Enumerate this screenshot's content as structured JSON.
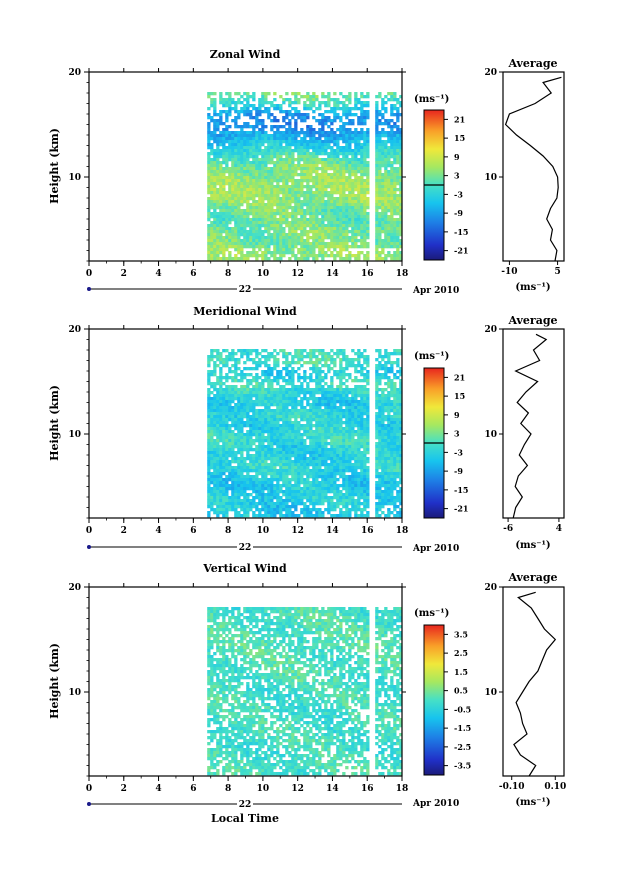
{
  "chart_data": [
    {
      "type": "heatmap",
      "title": "Zonal Wind",
      "ylabel": "Height (km)",
      "ylim": [
        2,
        20
      ],
      "yticks": [
        10,
        20
      ],
      "x_ticks": [
        0,
        2,
        4,
        6,
        8,
        10,
        12,
        14,
        16,
        18
      ],
      "xlim": [
        0,
        18
      ],
      "date_day": "22",
      "date_month_year": "Apr 2010",
      "data_start_hour": 6.8,
      "gap_hour": 16.2,
      "colorbar": {
        "unit": "(ms⁻¹)",
        "ticks": [
          "21",
          "15",
          "9",
          "3",
          "-3",
          "-9",
          "-15",
          "-21"
        ],
        "range": [
          -24,
          24
        ]
      },
      "profile": {
        "title": "Average",
        "xlabel": "(ms⁻¹)",
        "x_ticks": [
          "-10",
          "5"
        ],
        "x_tick_values": [
          -10,
          5
        ],
        "xlim": [
          -12,
          7
        ],
        "y_ticks": [
          "10",
          "20"
        ],
        "ylim": [
          2,
          20
        ],
        "height_km": [
          2,
          3,
          4,
          5,
          6,
          7,
          8,
          9,
          10,
          11,
          12,
          13,
          14,
          15,
          16,
          17,
          18,
          19,
          19.5
        ],
        "wind": [
          4.2,
          4.8,
          2.8,
          3.4,
          1.6,
          2.8,
          4.8,
          5.2,
          5.0,
          3.5,
          0.5,
          -3.5,
          -7.8,
          -11.2,
          -10.0,
          -2.0,
          3.0,
          0.5,
          6.2
        ]
      }
    },
    {
      "type": "heatmap",
      "title": "Meridional Wind",
      "ylabel": "Height (km)",
      "ylim": [
        2,
        20
      ],
      "yticks": [
        10,
        20
      ],
      "x_ticks": [
        0,
        2,
        4,
        6,
        8,
        10,
        12,
        14,
        16,
        18
      ],
      "xlim": [
        0,
        18
      ],
      "date_day": "22",
      "date_month_year": "Apr 2010",
      "data_start_hour": 6.8,
      "gap_hour": 16.2,
      "colorbar": {
        "unit": "(ms⁻¹)",
        "ticks": [
          "21",
          "15",
          "9",
          "3",
          "-3",
          "-9",
          "-15",
          "-21"
        ],
        "range": [
          -24,
          24
        ]
      },
      "profile": {
        "title": "Average",
        "xlabel": "(ms⁻¹)",
        "x_ticks": [
          "-6",
          "4"
        ],
        "x_tick_values": [
          -6,
          4
        ],
        "xlim": [
          -7,
          5
        ],
        "y_ticks": [
          "10",
          "20"
        ],
        "ylim": [
          2,
          20
        ],
        "height_km": [
          2,
          3,
          4,
          5,
          6,
          7,
          8,
          9,
          10,
          11,
          12,
          13,
          14,
          15,
          16,
          17,
          18,
          19,
          19.5
        ],
        "wind": [
          -5.0,
          -4.5,
          -3.2,
          -4.6,
          -4.0,
          -2.2,
          -3.8,
          -2.8,
          -1.5,
          -3.5,
          -2.0,
          -4.2,
          -2.5,
          -0.2,
          -4.5,
          0.2,
          -1.0,
          1.5,
          -0.5
        ]
      }
    },
    {
      "type": "heatmap",
      "title": "Vertical Wind",
      "ylabel": "Height (km)",
      "xlabel": "Local Time",
      "ylim": [
        2,
        20
      ],
      "yticks": [
        10,
        20
      ],
      "x_ticks": [
        0,
        2,
        4,
        6,
        8,
        10,
        12,
        14,
        16,
        18
      ],
      "xlim": [
        0,
        18
      ],
      "date_day": "22",
      "date_month_year": "Apr 2010",
      "data_start_hour": 6.8,
      "gap_hour": 16.2,
      "colorbar": {
        "unit": "(ms⁻¹)",
        "ticks": [
          "3.5",
          "2.5",
          "1.5",
          "0.5",
          "-0.5",
          "-1.5",
          "-2.5",
          "-3.5"
        ],
        "range": [
          -4,
          4
        ]
      },
      "profile": {
        "title": "Average",
        "xlabel": "(ms⁻¹)",
        "x_ticks": [
          "-0.10",
          "0.10"
        ],
        "x_tick_values": [
          -0.1,
          0.1
        ],
        "xlim": [
          -0.14,
          0.14
        ],
        "y_ticks": [
          "10",
          "20"
        ],
        "ylim": [
          2,
          20
        ],
        "height_km": [
          2,
          3,
          4,
          5,
          6,
          7,
          8,
          9,
          10,
          11,
          12,
          13,
          14,
          15,
          16,
          17,
          18,
          19,
          19.5
        ],
        "wind": [
          -0.02,
          0.01,
          -0.06,
          -0.09,
          -0.03,
          -0.05,
          -0.06,
          -0.08,
          -0.05,
          -0.02,
          0.02,
          0.04,
          0.06,
          0.1,
          0.05,
          0.02,
          -0.01,
          -0.07,
          0.01
        ]
      }
    }
  ]
}
